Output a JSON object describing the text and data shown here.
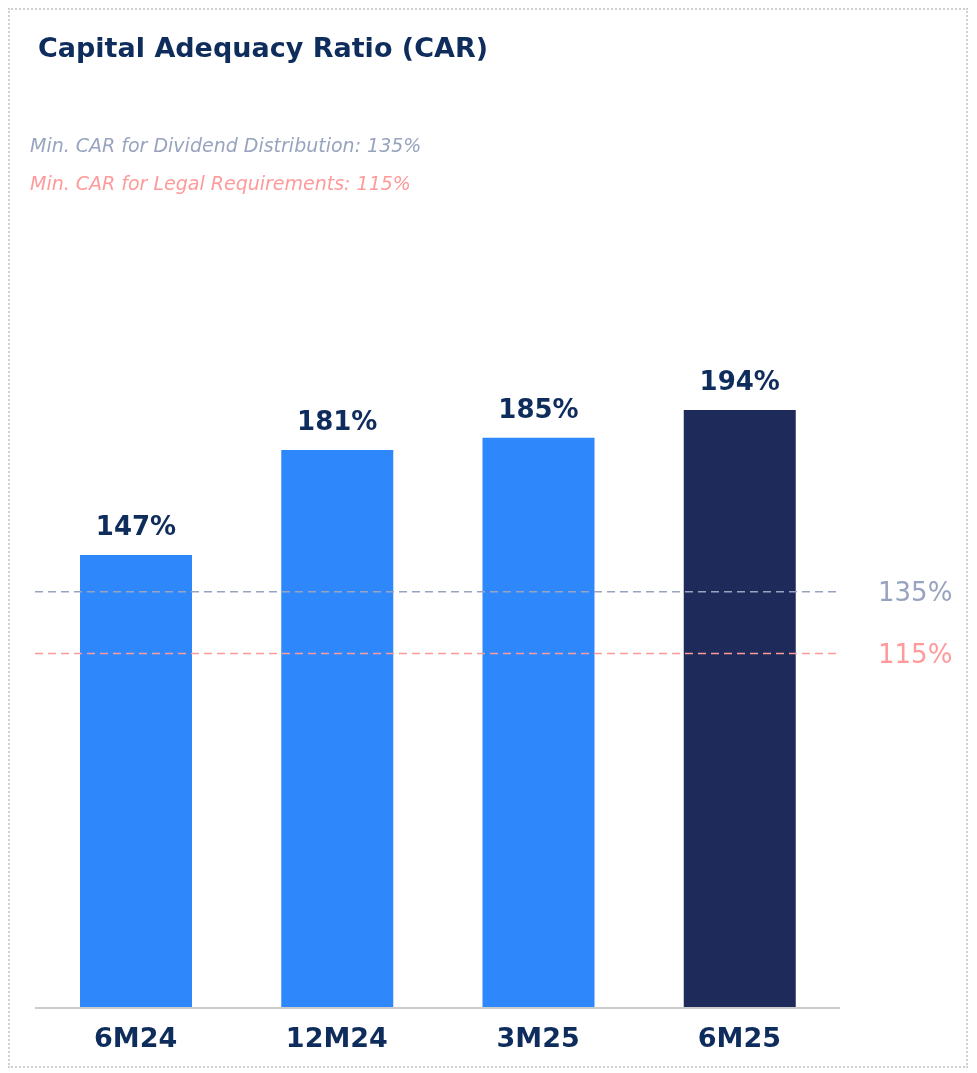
{
  "chart_data": {
    "type": "bar",
    "title": "Capital Adequacy Ratio (CAR)",
    "annotations": [
      "Min. CAR for Dividend Distribution: 135%",
      "Min. CAR for Legal Requirements: 115%"
    ],
    "categories": [
      "6M24",
      "12M24",
      "3M25",
      "6M25"
    ],
    "values": [
      147,
      181,
      185,
      194
    ],
    "value_labels": [
      "147%",
      "181%",
      "185%",
      "194%"
    ],
    "colors": [
      "#2e88fc",
      "#2e88fc",
      "#2e88fc",
      "#1e2a5a"
    ],
    "tick_labels": "x",
    "ref_lines": [
      {
        "axis": "y",
        "value": 135,
        "label": "135%",
        "color": "#98a4bf",
        "line_style": "dashed"
      },
      {
        "axis": "y",
        "value": 115,
        "label": "115%",
        "color": "#ff9a9a",
        "line_style": "dashed"
      }
    ]
  }
}
